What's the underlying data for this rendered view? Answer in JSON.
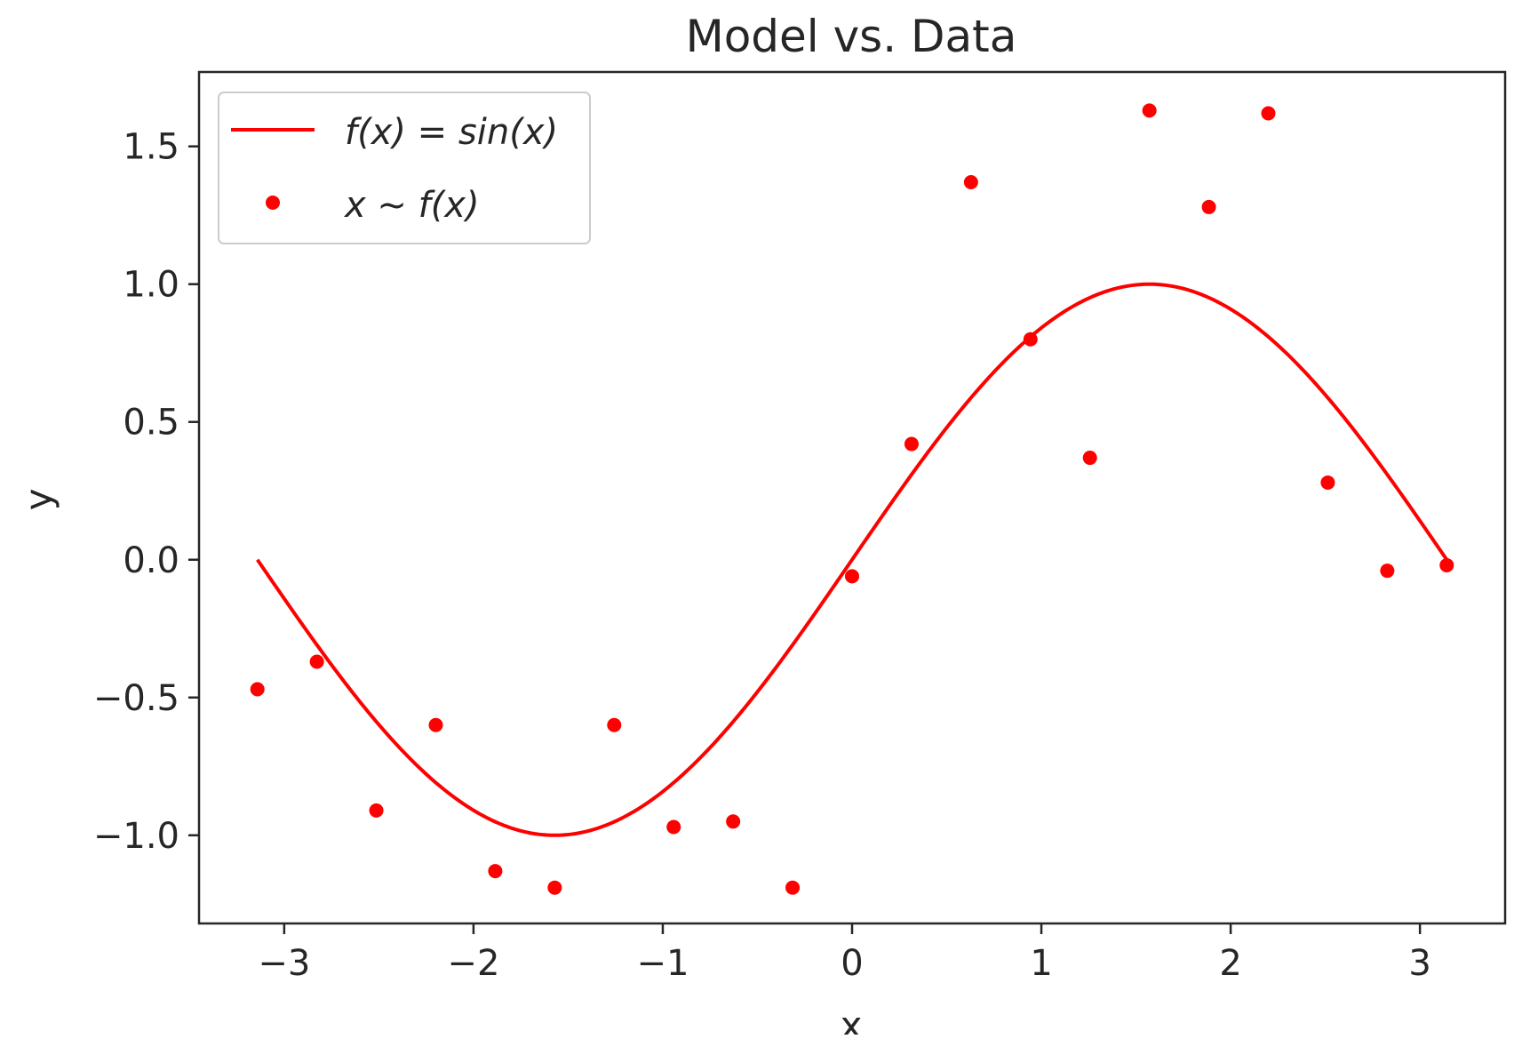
{
  "chart_data": {
    "type": "scatter",
    "title": "Model vs. Data",
    "xlabel": "x",
    "ylabel": "y",
    "xlim": [
      -3.45,
      3.45
    ],
    "ylim": [
      -1.32,
      1.77
    ],
    "grid": false,
    "legend_position": "top-left",
    "xticks": [
      -3,
      -2,
      -1,
      0,
      1,
      2,
      3
    ],
    "xtick_labels": [
      "−3",
      "−2",
      "−1",
      "0",
      "1",
      "2",
      "3"
    ],
    "yticks": [
      1.5,
      1.0,
      0.5,
      0.0,
      -0.5,
      -1.0
    ],
    "ytick_labels": [
      "1.5",
      "1.0",
      "0.5",
      "0.0",
      "−0.5",
      "−1.0"
    ],
    "series": [
      {
        "name": "f(x) = sin(x)",
        "kind": "line",
        "color": "#ff0000",
        "function": "sin",
        "x_range": [
          -3.14159,
          3.14159
        ]
      },
      {
        "name": "x ~ f(x)",
        "kind": "points",
        "color": "#ff0000",
        "x": [
          -3.1416,
          -2.8274,
          -2.5133,
          -2.1991,
          -1.885,
          -1.5708,
          -1.2566,
          -0.9425,
          -0.6283,
          -0.3142,
          0.0,
          0.3142,
          0.6283,
          0.9425,
          1.2566,
          1.5708,
          1.885,
          2.1991,
          2.5133,
          2.8274,
          3.1416
        ],
        "y": [
          -0.47,
          -0.37,
          -0.91,
          -0.6,
          -1.13,
          -1.19,
          -0.6,
          -0.97,
          -0.95,
          -1.19,
          -0.06,
          0.42,
          1.37,
          0.8,
          0.37,
          1.63,
          1.28,
          1.62,
          0.28,
          -0.04,
          -0.02
        ]
      }
    ]
  }
}
